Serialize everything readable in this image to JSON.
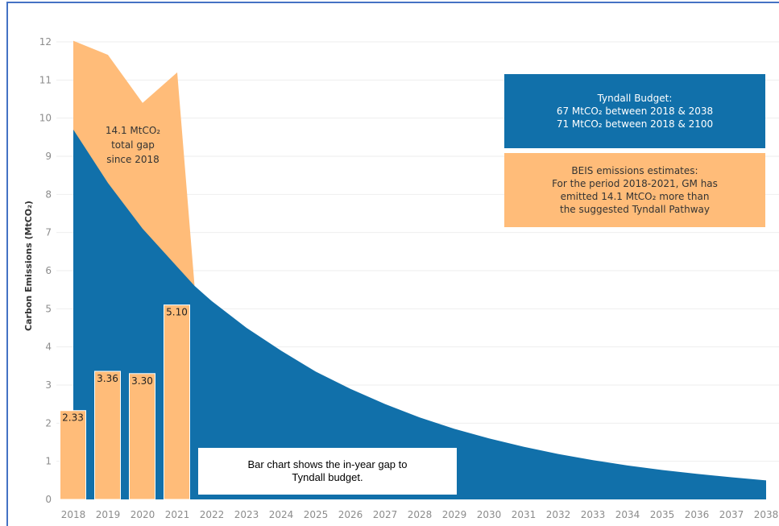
{
  "chart_data": {
    "type": "area",
    "title": "",
    "xlabel": "",
    "ylabel": "Carbon Emissions (MtCO₂)",
    "ylim": [
      0,
      12
    ],
    "y_ticks": [
      0,
      1,
      2,
      3,
      4,
      5,
      6,
      7,
      8,
      9,
      10,
      11,
      12
    ],
    "x_ticks": [
      "2018",
      "2019",
      "2020",
      "2021",
      "2022",
      "2023",
      "2024",
      "2025",
      "2026",
      "2027",
      "2028",
      "2029",
      "2030",
      "2031",
      "2032",
      "2033",
      "2034",
      "2035",
      "2036",
      "2037",
      "2038"
    ],
    "grid": true,
    "series": [
      {
        "name": "Tyndall Budget",
        "color": "#1170aa",
        "x": [
          2018,
          2019,
          2020,
          2021,
          2021.5,
          2022,
          2023,
          2024,
          2025,
          2026,
          2027,
          2028,
          2029,
          2030,
          2031,
          2032,
          2033,
          2034,
          2035,
          2036,
          2037,
          2038
        ],
        "values": [
          9.7,
          8.3,
          7.1,
          6.1,
          5.6,
          5.2,
          4.5,
          3.9,
          3.35,
          2.9,
          2.5,
          2.15,
          1.85,
          1.6,
          1.38,
          1.19,
          1.03,
          0.89,
          0.77,
          0.67,
          0.58,
          0.5
        ]
      },
      {
        "name": "BEIS emissions estimates",
        "color": "#ffbc79",
        "x": [
          2018,
          2019,
          2020,
          2021,
          2021.5
        ],
        "values": [
          12.03,
          11.66,
          10.4,
          11.2,
          5.6
        ]
      }
    ],
    "bars": {
      "name": "In-year gap to Tyndall budget",
      "color": "#ffbc79",
      "categories": [
        "2018",
        "2019",
        "2020",
        "2021"
      ],
      "values": [
        2.33,
        3.36,
        3.3,
        5.1
      ],
      "labels": [
        "2.33",
        "3.36",
        "3.30",
        "5.10"
      ]
    },
    "annotations": {
      "gap_lines": [
        "14.1 MtCO₂",
        "total gap",
        "since 2018"
      ],
      "tyndall_box": [
        "Tyndall Budget:",
        "67 MtCO₂ between 2018 & 2038",
        "71 MtCO₂ between 2018 & 2100"
      ],
      "beis_box": [
        "BEIS emissions estimates:",
        "For the period 2018-2021, GM has",
        "emitted 14.1 MtCO₂ more than",
        "the suggested Tyndall Pathway"
      ],
      "note": "Bar chart shows the in-year gap to Tyndall budget."
    }
  }
}
